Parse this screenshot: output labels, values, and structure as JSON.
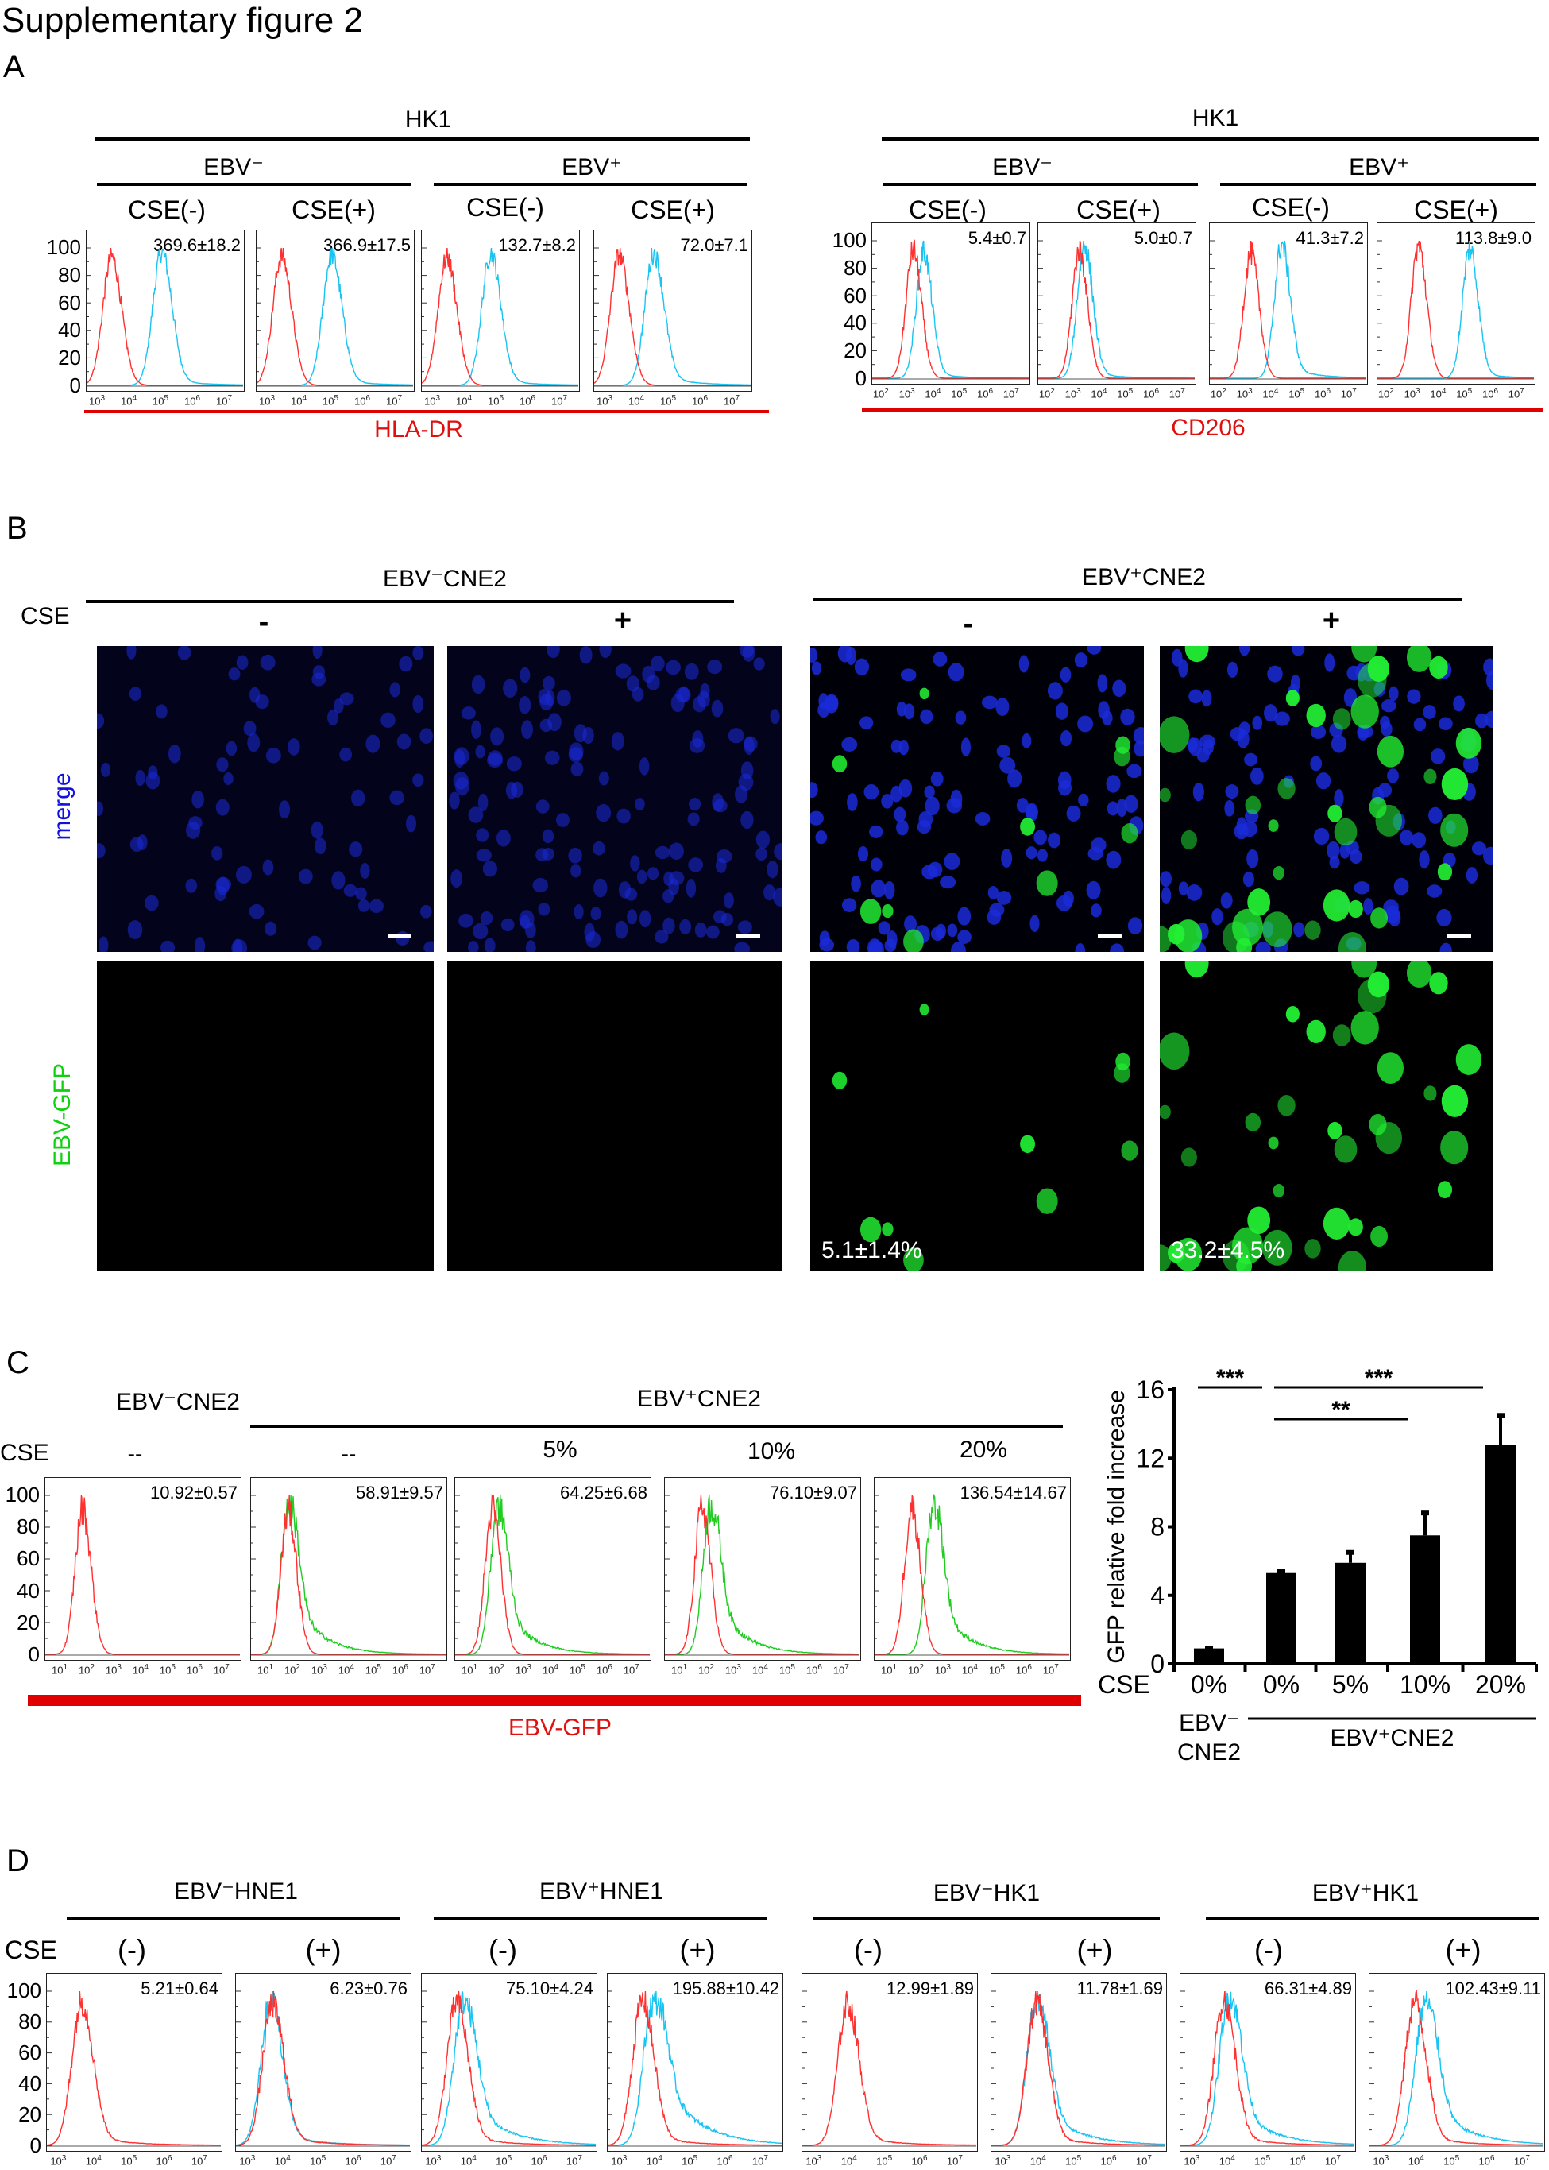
{
  "figure": {
    "title": "Supplementary figure 2"
  },
  "colors": {
    "control_curve": "#ff3030",
    "sample_curve_cyan": "#19c4f2",
    "sample_curve_green": "#1fcc1f",
    "marker_label": "#e01010",
    "merge_label": "#1010e0",
    "gfp_label": "#10d010",
    "nuclei": "#1a2ad8",
    "gfp_cells": "#22ee33"
  },
  "panel_a": {
    "label": "A",
    "left": {
      "cell_line": "HK1",
      "groups": [
        "EBV⁻",
        "EBV⁺"
      ],
      "conditions": [
        "CSE(-)",
        "CSE(+)",
        "CSE(-)",
        "CSE(+)"
      ],
      "values": [
        "369.6±18.2",
        "366.9±17.5",
        "132.7±8.2",
        "72.0±7.1"
      ],
      "marker": "HLA-DR"
    },
    "right": {
      "cell_line": "HK1",
      "groups": [
        "EBV⁻",
        "EBV⁺"
      ],
      "conditions": [
        "CSE(-)",
        "CSE(+)",
        "CSE(-)",
        "CSE(+)"
      ],
      "values": [
        "5.4±0.7",
        "5.0±0.7",
        "41.3±7.2",
        "113.8±9.0"
      ],
      "marker": "CD206"
    }
  },
  "panel_b": {
    "label": "B",
    "groups": [
      "EBV⁻CNE2",
      "EBV⁺CNE2"
    ],
    "cse_label": "CSE",
    "conditions": [
      "-",
      "+",
      "-",
      "+"
    ],
    "rows": [
      "merge",
      "EBV-GFP"
    ],
    "percentages": [
      "5.1±1.4%",
      "33.2±4.5%"
    ]
  },
  "panel_c": {
    "label": "C",
    "group_neg": "EBV⁻CNE2",
    "group_pos": "EBV⁺CNE2",
    "cse_label": "CSE",
    "conditions": [
      "--",
      "--",
      "5%",
      "10%",
      "20%"
    ],
    "values": [
      "10.92±0.57",
      "58.91±9.57",
      "64.25±6.68",
      "76.10±9.07",
      "136.54±14.67"
    ],
    "marker": "EBV-GFP"
  },
  "panel_d": {
    "label": "D",
    "cse_label": "CSE",
    "groups": [
      "EBV⁻HNE1",
      "EBV⁺HNE1",
      "EBV⁻HK1",
      "EBV⁺HK1"
    ],
    "conditions": [
      "(-)",
      "(+)",
      "(-)",
      "(+)",
      "(-)",
      "(+)",
      "(-)",
      "(+)"
    ],
    "values": [
      "5.21±0.64",
      "6.23±0.76",
      "75.10±4.24",
      "195.88±10.42",
      "12.99±1.89",
      "11.78±1.69",
      "66.31±4.89",
      "102.43±9.11"
    ]
  },
  "chart_data": [
    {
      "type": "histogram",
      "id": "A-HLA-DR",
      "y_ticks": [
        "0",
        "20",
        "40",
        "60",
        "80",
        "100"
      ],
      "ylim": [
        0,
        100
      ],
      "x_scale": "log",
      "x_tick_exponents": [
        "3",
        "4",
        "5",
        "6",
        "7"
      ],
      "xlim_log10": [
        2.7,
        7.7
      ],
      "series_peaks_log10": [
        {
          "control": 3.5,
          "sample": 5.1
        },
        {
          "control": 3.5,
          "sample": 5.1
        },
        {
          "control": 3.5,
          "sample": 4.9
        },
        {
          "control": 3.5,
          "sample": 4.6
        }
      ]
    },
    {
      "type": "histogram",
      "id": "A-CD206",
      "y_ticks": [
        "0",
        "20",
        "40",
        "60",
        "80",
        "100"
      ],
      "ylim": [
        0,
        100
      ],
      "x_scale": "log",
      "x_tick_exponents": [
        "2",
        "3",
        "4",
        "5",
        "6",
        "7"
      ],
      "xlim_log10": [
        1.7,
        7.8
      ],
      "series_peaks_log10": [
        {
          "control": 3.3,
          "sample": 3.7
        },
        {
          "control": 3.3,
          "sample": 3.5
        },
        {
          "control": 3.3,
          "sample": 4.5
        },
        {
          "control": 3.3,
          "sample": 5.3
        }
      ]
    },
    {
      "type": "histogram",
      "id": "C-EBV-GFP",
      "y_ticks": [
        "0",
        "20",
        "40",
        "60",
        "80",
        "100"
      ],
      "ylim": [
        0,
        100
      ],
      "x_scale": "log",
      "x_tick_exponents": [
        "1",
        "2",
        "3",
        "4",
        "5",
        "6",
        "7"
      ],
      "xlim_log10": [
        0.5,
        7.8
      ],
      "series_peaks_log10": [
        {
          "control": 1.9,
          "sample": null
        },
        {
          "control": 1.9,
          "sample": 1.9
        },
        {
          "control": 1.9,
          "sample": 2.1
        },
        {
          "control": 1.9,
          "sample": 2.2
        },
        {
          "control": 1.9,
          "sample": 2.7
        }
      ]
    },
    {
      "type": "histogram",
      "id": "D",
      "y_ticks": [
        "0",
        "20",
        "40",
        "60",
        "80",
        "100"
      ],
      "ylim": [
        0,
        100
      ],
      "x_scale": "log",
      "x_tick_exponents": [
        "3",
        "4",
        "5",
        "6",
        "7"
      ],
      "xlim_log10": [
        2.7,
        7.7
      ],
      "series_peaks_log10": [
        {
          "control": 3.7,
          "sample": null
        },
        {
          "control": 3.75,
          "sample": 3.7
        },
        {
          "control": 3.7,
          "sample": 3.9
        },
        {
          "control": 3.7,
          "sample": 4.0
        },
        {
          "control": 4.0,
          "sample": null
        },
        {
          "control": 4.0,
          "sample": 4.0
        },
        {
          "control": 3.95,
          "sample": 4.1
        },
        {
          "control": 4.0,
          "sample": 4.3
        }
      ]
    },
    {
      "type": "bar",
      "id": "C-bar",
      "ylabel": "GFP relative fold increase",
      "x_row_label": "CSE",
      "categories": [
        "0%",
        "0%",
        "5%",
        "10%",
        "20%"
      ],
      "values": [
        0.9,
        5.3,
        5.9,
        7.5,
        12.8
      ],
      "errors": [
        0.05,
        0.15,
        0.65,
        1.35,
        1.75
      ],
      "ylim": [
        0,
        16
      ],
      "y_ticks": [
        "0",
        "4",
        "8",
        "12",
        "16"
      ],
      "group_labels": [
        {
          "text": [
            "EBV⁻",
            "CNE2"
          ],
          "bars": [
            0
          ]
        },
        {
          "text": [
            "EBV⁺CNE2"
          ],
          "bars": [
            1,
            4
          ]
        }
      ],
      "significance": [
        {
          "from": 0,
          "to": 1,
          "label": "***"
        },
        {
          "from": 1,
          "to": 4,
          "label": "***"
        },
        {
          "from": 1,
          "to": 3,
          "label": "**"
        }
      ],
      "bar_color": "#000000"
    }
  ]
}
